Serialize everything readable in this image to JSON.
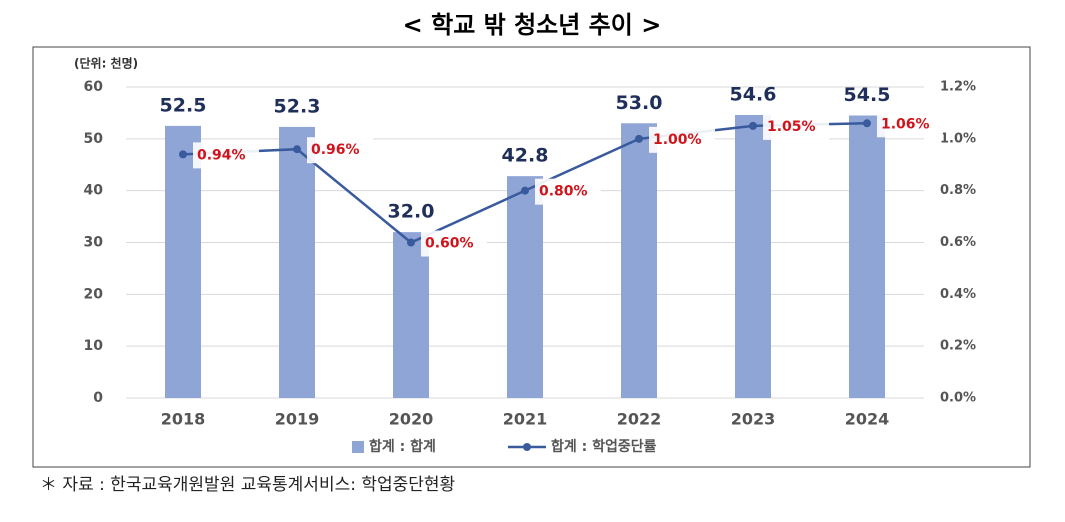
{
  "chart_data": {
    "type": "bar",
    "title": "< 학교 밖 청소년 추이 >",
    "unit_label": "(단위: 천명)",
    "footnote": "＊ 자료 : 한국교육개원발원 교육통계서비스: 학업중단현황",
    "categories": [
      "2018",
      "2019",
      "2020",
      "2021",
      "2022",
      "2023",
      "2024"
    ],
    "series": [
      {
        "name": "합계 : 합계",
        "type": "bar",
        "color": "#8fa5d6",
        "values": [
          52.5,
          52.3,
          32.0,
          42.8,
          53.0,
          54.6,
          54.5
        ],
        "value_labels": [
          "52.5",
          "52.3",
          "32.0",
          "42.8",
          "53.0",
          "54.6",
          "54.5"
        ]
      },
      {
        "name": "합계 : 학업중단률",
        "type": "line",
        "axis": "y2",
        "color": "#3a5a9e",
        "values": [
          0.94,
          0.96,
          0.6,
          0.8,
          1.0,
          1.05,
          1.06
        ],
        "value_labels": [
          "0.94%",
          "0.96%",
          "0.60%",
          "0.80%",
          "1.00%",
          "1.05%",
          "1.06%"
        ]
      }
    ],
    "ylim": [
      0,
      60
    ],
    "yticks": [
      0,
      10,
      20,
      30,
      40,
      50,
      60
    ],
    "y2lim": [
      0,
      1.2
    ],
    "y2ticks": [
      {
        "value": 0,
        "label": "0.0%"
      },
      {
        "value": 0.2,
        "label": "0.2%"
      },
      {
        "value": 0.4,
        "label": "0.4%"
      },
      {
        "value": 0.6,
        "label": "0.6%"
      },
      {
        "value": 0.8,
        "label": "0.8%"
      },
      {
        "value": 1.0,
        "label": "1.0%"
      },
      {
        "value": 1.2,
        "label": "1.2%"
      }
    ],
    "grid": true,
    "legend": "bottom"
  }
}
